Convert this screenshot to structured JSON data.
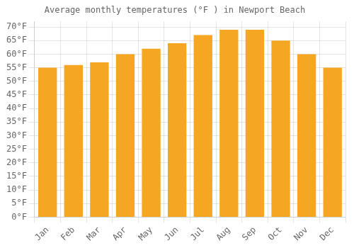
{
  "chart_data": {
    "type": "bar",
    "title": "Average monthly temperatures (°F ) in Newport Beach",
    "categories": [
      "Jan",
      "Feb",
      "Mar",
      "Apr",
      "May",
      "Jun",
      "Jul",
      "Aug",
      "Sep",
      "Oct",
      "Nov",
      "Dec"
    ],
    "values": [
      55,
      56,
      57,
      60,
      62,
      64,
      67,
      69,
      69,
      65,
      60,
      55
    ],
    "color": "#F5A623",
    "ylim": [
      0,
      72
    ],
    "yticks": [
      {
        "value": 0,
        "label": "0°F"
      },
      {
        "value": 5,
        "label": "5°F"
      },
      {
        "value": 10,
        "label": "10°F"
      },
      {
        "value": 15,
        "label": "15°F"
      },
      {
        "value": 20,
        "label": "20°F"
      },
      {
        "value": 25,
        "label": "25°F"
      },
      {
        "value": 30,
        "label": "30°F"
      },
      {
        "value": 35,
        "label": "35°F"
      },
      {
        "value": 40,
        "label": "40°F"
      },
      {
        "value": 45,
        "label": "45°F"
      },
      {
        "value": 50,
        "label": "50°F"
      },
      {
        "value": 55,
        "label": "55°F"
      },
      {
        "value": 60,
        "label": "60°F"
      },
      {
        "value": 65,
        "label": "65°F"
      },
      {
        "value": 70,
        "label": "70°F"
      }
    ],
    "grid": true
  }
}
